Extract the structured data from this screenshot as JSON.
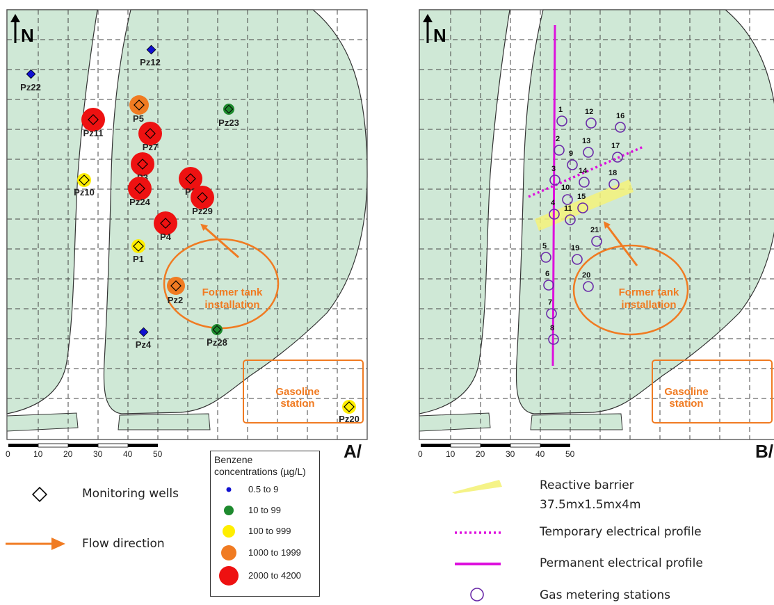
{
  "panels": {
    "a_label": "A/",
    "b_label": "B/",
    "north": "N"
  },
  "map_labels": {
    "former_tank_line1": "Former tank",
    "former_tank_line2": "installation",
    "gasoline_line1": "Gasoline",
    "gasoline_line2": "station"
  },
  "scale_bar": {
    "ticks": [
      "0",
      "10",
      "20",
      "30",
      "40",
      "50"
    ]
  },
  "wells_panel_a": [
    {
      "id": "Pz22",
      "cls": "0.5 to 9"
    },
    {
      "id": "Pz12",
      "cls": "0.5 to 9"
    },
    {
      "id": "P5",
      "cls": "1000 to 1999"
    },
    {
      "id": "Pz23",
      "cls": "10 to 99"
    },
    {
      "id": "Pz11",
      "cls": "2000 to 4200"
    },
    {
      "id": "Pz7",
      "cls": "2000 to 4200"
    },
    {
      "id": "P3",
      "cls": "2000 to 4200"
    },
    {
      "id": "Pz10",
      "cls": "100 to 999"
    },
    {
      "id": "Pz24",
      "cls": "2000 to 4200"
    },
    {
      "id": "P2",
      "cls": "2000 to 4200"
    },
    {
      "id": "Pz29",
      "cls": "2000 to 4200"
    },
    {
      "id": "P4",
      "cls": "2000 to 4200"
    },
    {
      "id": "P1",
      "cls": "100 to 999"
    },
    {
      "id": "Pz2",
      "cls": "1000 to 1999"
    },
    {
      "id": "Pz4",
      "cls": "0.5 to 9"
    },
    {
      "id": "Pz28",
      "cls": "10 to 99"
    },
    {
      "id": "Pz20",
      "cls": "100 to 999"
    }
  ],
  "gas_stations_panel_b": [
    "1",
    "2",
    "3",
    "4",
    "5",
    "6",
    "7",
    "8",
    "9",
    "10",
    "11",
    "12",
    "13",
    "14",
    "15",
    "16",
    "17",
    "18",
    "19",
    "20",
    "21"
  ],
  "legend_a": {
    "monitoring_wells": "Monitoring wells",
    "flow_direction": "Flow direction",
    "benzene_title_1": "Benzene",
    "benzene_title_2": "concentrations (µg/L)",
    "classes": [
      {
        "label": "0.5  to  9",
        "color": "#1010d0",
        "size": "small"
      },
      {
        "label": "10  to  99",
        "color": "#1e8a2e",
        "size": "medium"
      },
      {
        "label": "100  to  999",
        "color": "#ffee00",
        "size": "medium"
      },
      {
        "label": "1000  to  1999",
        "color": "#f07b22",
        "size": "large"
      },
      {
        "label": "2000  to  4200",
        "color": "#ee1111",
        "size": "xlarge"
      }
    ]
  },
  "legend_b": {
    "reactive_barrier_1": "Reactive barrier",
    "reactive_barrier_2": "37.5mx1.5mx4m",
    "temporary_profile": "Temporary electrical profile",
    "permanent_profile": "Permanent electrical profile",
    "gas_metering": "Gas metering stations"
  },
  "colors": {
    "green_area": "#cfe8d6",
    "orange": "#f07b22",
    "magenta": "#dd10dd",
    "purple": "#6a2aa8",
    "barrier": "#f4f27a"
  }
}
